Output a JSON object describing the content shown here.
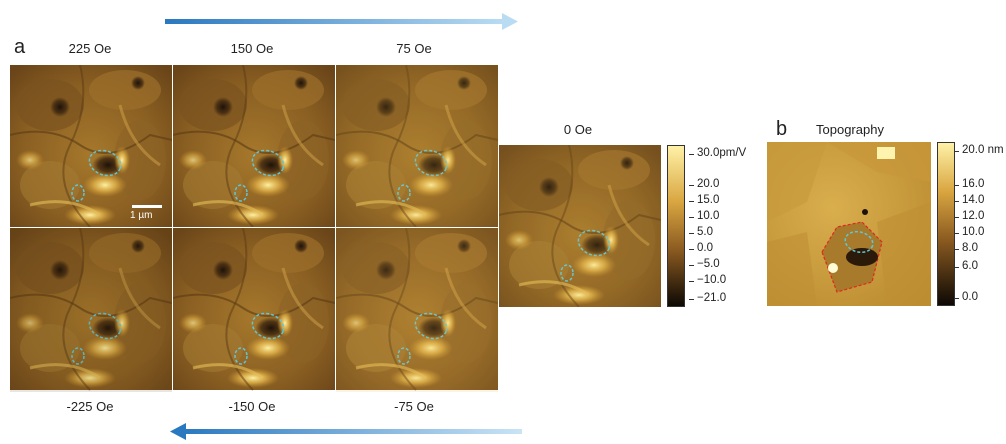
{
  "panel_a": {
    "letter": "a",
    "row1": [
      "225 Oe",
      "150 Oe",
      "75 Oe"
    ],
    "row2": [
      "-225 Oe",
      "-150 Oe",
      "-75 Oe"
    ],
    "center_label": "0 Oe",
    "scalebar_label": "1 µm",
    "colorbar": {
      "unit": "pm/V",
      "ticks": [
        "30.0",
        "20.0",
        "15.0",
        "10.0",
        "5.0",
        "0.0",
        "−5.0",
        "−10.0",
        "−21.0"
      ],
      "color_top": "#fff2a8",
      "color_mid": "#b8862f",
      "color_bottom": "#0c0804"
    }
  },
  "panel_b": {
    "letter": "b",
    "title": "Topography",
    "colorbar": {
      "unit": "nm",
      "ticks": [
        "20.0",
        "16.0",
        "14.0",
        "12.0",
        "10.0",
        "8.0",
        "6.0",
        "0.0"
      ]
    }
  },
  "colors": {
    "arrow": "#2a78c0",
    "dashed_outline": "#5fc6d6",
    "dashed_red": "#e0281e"
  }
}
